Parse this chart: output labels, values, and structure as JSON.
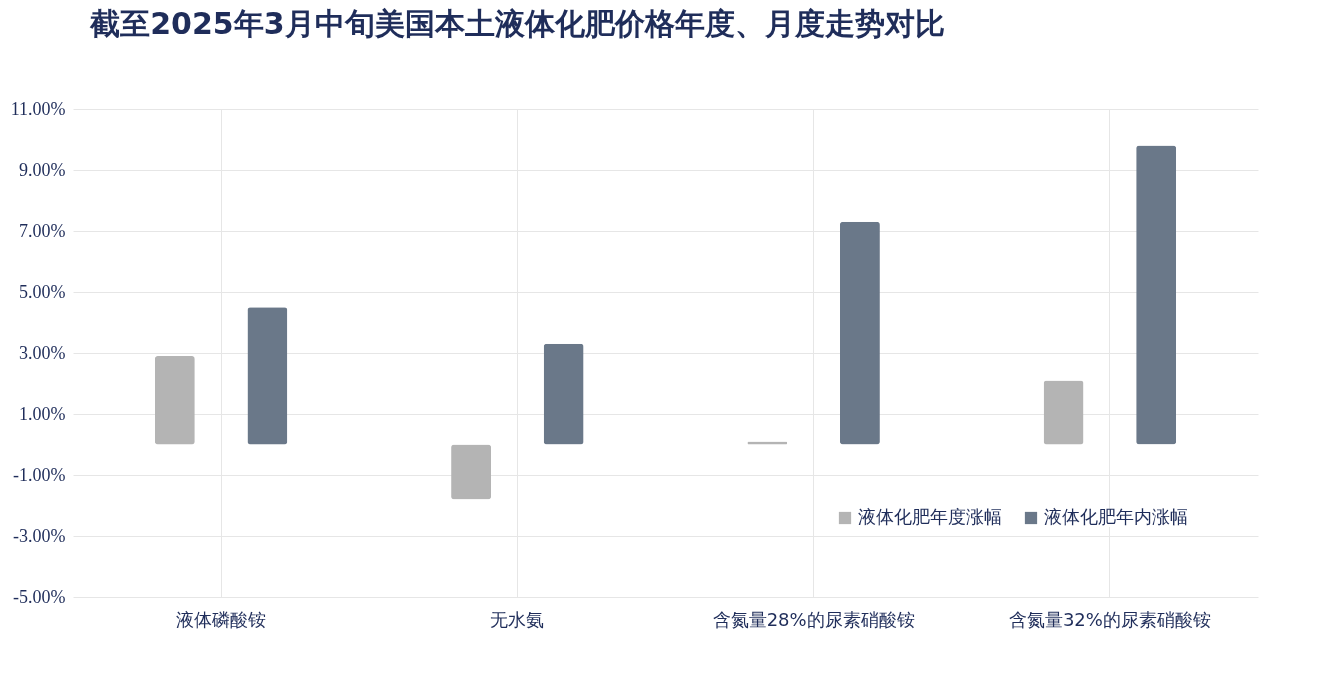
{
  "chart_data": {
    "type": "bar",
    "title": "截至2025年3月中旬美国本土液体化肥价格年度、月度走势对比",
    "categories": [
      "液体磷酸铵",
      "无水氨",
      "含氮量28%的尿素硝酸铵",
      "含氮量32%的尿素硝酸铵"
    ],
    "series": [
      {
        "name": "液体化肥年度涨幅",
        "color": "#b4b4b4",
        "values": [
          2.9,
          -1.8,
          0.1,
          2.1
        ]
      },
      {
        "name": "液体化肥年内涨幅",
        "color": "#6a7889",
        "values": [
          4.5,
          3.3,
          7.3,
          9.8
        ]
      }
    ],
    "ylim": [
      -5,
      11
    ],
    "yticks": [
      {
        "value": -5,
        "label": "-5.00%"
      },
      {
        "value": -3,
        "label": "-3.00%"
      },
      {
        "value": -1,
        "label": "-1.00%"
      },
      {
        "value": 1,
        "label": "1.00%"
      },
      {
        "value": 3,
        "label": "3.00%"
      },
      {
        "value": 5,
        "label": "5.00%"
      },
      {
        "value": 7,
        "label": "7.00%"
      },
      {
        "value": 9,
        "label": "9.00%"
      },
      {
        "value": 11,
        "label": "11.00%"
      }
    ],
    "grid": true,
    "legend": "bottom right"
  }
}
